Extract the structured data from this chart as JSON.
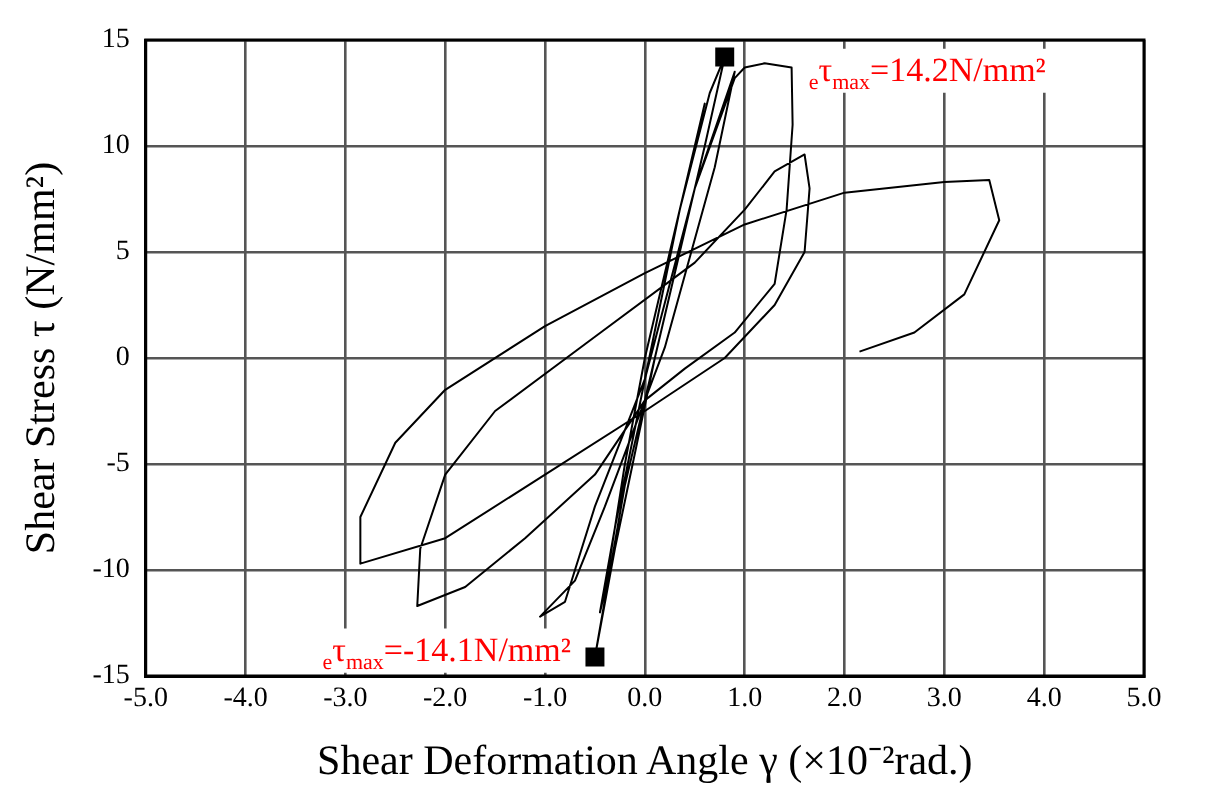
{
  "chart_data": {
    "type": "line",
    "xlabel": "Shear Deformation Angle γ (×10⁻²rad.)",
    "ylabel": "Shear Stress τ (N/mm²)",
    "xlim": [
      -5,
      5
    ],
    "xticks": [
      {
        "value": -5,
        "label": "-5.0"
      },
      {
        "value": -4,
        "label": "-4.0"
      },
      {
        "value": -3,
        "label": "-3.0"
      },
      {
        "value": -2,
        "label": "-2.0"
      },
      {
        "value": -1,
        "label": "-1.0"
      },
      {
        "value": 0,
        "label": "0.0"
      },
      {
        "value": 1,
        "label": "1.0"
      },
      {
        "value": 2,
        "label": "2.0"
      },
      {
        "value": 3,
        "label": "3.0"
      },
      {
        "value": 4,
        "label": "4.0"
      },
      {
        "value": 5,
        "label": "5.0"
      }
    ],
    "ylim": [
      -15,
      15
    ],
    "yticks": [
      -15,
      -10,
      -5,
      0,
      5,
      10,
      15
    ],
    "grid": true,
    "legend": false,
    "series": [
      {
        "color": "#000000",
        "marker": "none",
        "x": [
          0,
          0.3,
          0.55,
          0.6,
          0.4,
          0,
          -0.2,
          -0.4,
          -0.45,
          -0.3,
          0,
          0.35,
          0.65,
          0.8,
          0.6,
          0.2,
          -0.2,
          -0.5,
          -0.3,
          0.1,
          0.5,
          0.9,
          0.7,
          0.2,
          -0.4,
          -0.7,
          -1.05,
          -0.8,
          -0.5,
          0,
          0.5,
          0.9,
          1.0,
          1.2,
          1.47,
          1.48,
          1.42,
          1.3,
          0.9,
          0.4,
          0,
          -0.5,
          -1.2,
          -1.8,
          -2.28,
          -2.25,
          -2.0,
          -1.5,
          -0.5,
          0.5,
          1.0,
          1.3,
          1.6,
          1.65,
          1.6,
          1.3,
          0.8,
          0,
          -1.0,
          -2.0,
          -2.85,
          -2.85,
          -2.5,
          -2.0,
          -1.0,
          0,
          1.0,
          2.0,
          3.0,
          3.45,
          3.55,
          3.2,
          2.7,
          2.15
        ],
        "values": [
          0,
          6,
          11,
          12,
          8,
          0,
          -5,
          -11,
          -12,
          -8,
          -1,
          7,
          12.5,
          14.2,
          10,
          2,
          -6,
          -14.1,
          -9,
          0,
          8,
          13.5,
          9,
          0.5,
          -7,
          -10.5,
          -12.2,
          -11.5,
          -7,
          -1,
          8,
          13.2,
          13.7,
          13.9,
          13.7,
          11,
          7,
          3.5,
          1.2,
          -0.5,
          -2,
          -5.5,
          -8.5,
          -10.8,
          -11.7,
          -9,
          -5.5,
          -2.5,
          1,
          4.5,
          7,
          8.8,
          9.6,
          8,
          5,
          2.5,
          0,
          -2.5,
          -5.5,
          -8.5,
          -9.7,
          -7.5,
          -4,
          -1.5,
          1.5,
          4,
          6.3,
          7.8,
          8.3,
          8.4,
          6.5,
          3,
          1.2,
          0.3
        ]
      },
      {
        "type": "scatter",
        "color": "#000000",
        "marker": "square",
        "x": [
          0.8,
          -0.5
        ],
        "values": [
          14.2,
          -14.1
        ]
      }
    ],
    "annotations": [
      {
        "text": "$_{e}$τ$_{max}$=14.2N/mm²",
        "x": 0.8,
        "y": 14.2
      },
      {
        "text": "$_{e}$τ$_{max}$=-14.1N/mm²",
        "x": -0.5,
        "y": -14.1
      }
    ]
  }
}
